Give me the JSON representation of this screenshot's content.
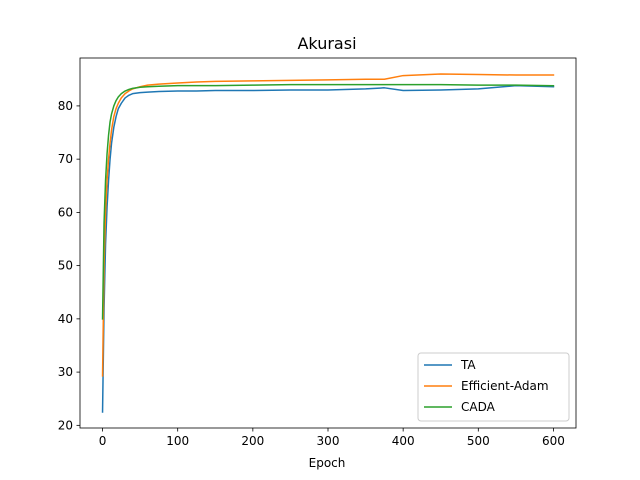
{
  "chart_data": {
    "type": "line",
    "title": "Akurasi",
    "xlabel": "Epoch",
    "ylabel": "",
    "xlim": [
      -30,
      630
    ],
    "ylim": [
      19.5,
      89.0
    ],
    "xticks": [
      0,
      100,
      200,
      300,
      400,
      500,
      600
    ],
    "yticks": [
      20,
      30,
      40,
      50,
      60,
      70,
      80
    ],
    "legend_position": "lower-right",
    "grid": false,
    "series": [
      {
        "name": "TA",
        "color": "#1f77b4",
        "x": [
          0,
          2,
          4,
          6,
          8,
          10,
          12,
          15,
          18,
          21,
          25,
          30,
          35,
          40,
          50,
          60,
          75,
          100,
          125,
          150,
          200,
          250,
          300,
          350,
          375,
          400,
          450,
          500,
          550,
          600
        ],
        "y": [
          22.5,
          42,
          54,
          61,
          66,
          70,
          73,
          76,
          78,
          79.5,
          80.5,
          81.5,
          82,
          82.3,
          82.5,
          82.6,
          82.7,
          82.8,
          82.8,
          82.9,
          82.9,
          83.0,
          83.0,
          83.2,
          83.4,
          82.9,
          83.0,
          83.2,
          83.8,
          83.6
        ]
      },
      {
        "name": "Efficient-Adam",
        "color": "#ff7f0e",
        "x": [
          0,
          2,
          4,
          6,
          8,
          10,
          12,
          15,
          18,
          21,
          25,
          30,
          35,
          40,
          50,
          60,
          75,
          100,
          125,
          150,
          200,
          250,
          300,
          350,
          375,
          400,
          450,
          500,
          550,
          600
        ],
        "y": [
          29.3,
          50,
          60,
          66,
          70,
          73,
          75.5,
          78,
          79.5,
          80.5,
          81.5,
          82.3,
          82.8,
          83.2,
          83.6,
          83.9,
          84.1,
          84.3,
          84.5,
          84.6,
          84.7,
          84.8,
          84.9,
          85.0,
          85.0,
          85.7,
          86.0,
          85.9,
          85.8,
          85.8
        ]
      },
      {
        "name": "CADA",
        "color": "#2ca02c",
        "x": [
          0,
          2,
          4,
          6,
          8,
          10,
          12,
          15,
          18,
          21,
          25,
          30,
          35,
          40,
          50,
          60,
          75,
          100,
          125,
          150,
          200,
          250,
          300,
          350,
          375,
          400,
          450,
          500,
          550,
          600
        ],
        "y": [
          40.0,
          58,
          66,
          71,
          74.5,
          77,
          78.5,
          80,
          81,
          81.7,
          82.3,
          82.8,
          83.1,
          83.3,
          83.5,
          83.6,
          83.7,
          83.8,
          83.8,
          83.8,
          83.9,
          84.0,
          84.0,
          84.0,
          84.0,
          84.0,
          84.0,
          83.9,
          83.9,
          83.8
        ]
      }
    ]
  }
}
